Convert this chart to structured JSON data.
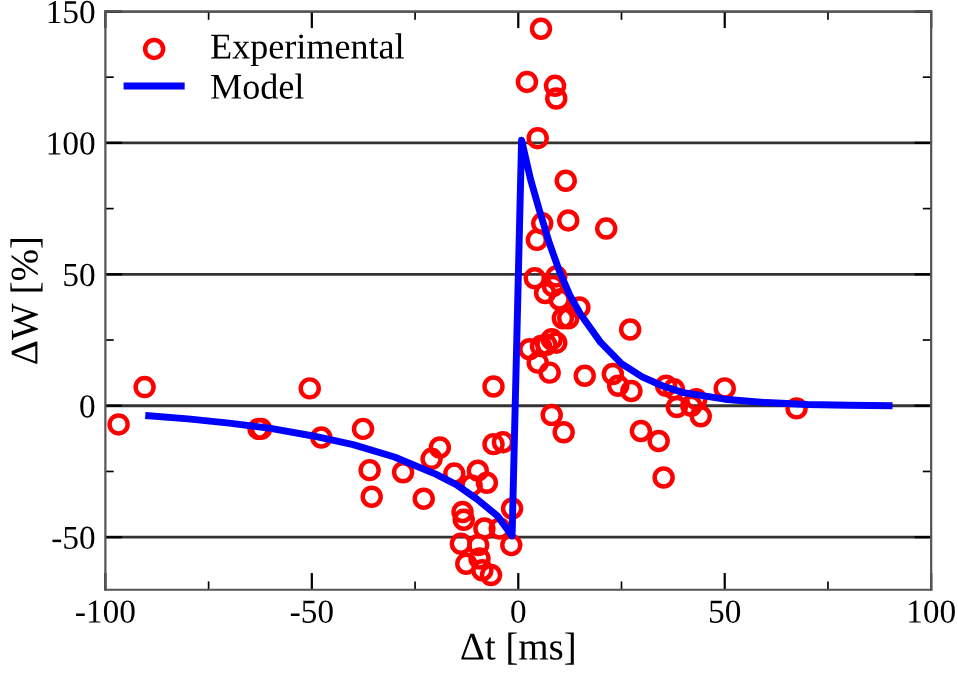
{
  "chart_data": {
    "type": "scatter",
    "xlabel": "Δt [ms]",
    "ylabel": "ΔW [%]",
    "xlim": [
      -100,
      100
    ],
    "xticks": [
      -100,
      -50,
      0,
      50,
      100
    ],
    "ylim": [
      -70,
      150
    ],
    "yticks": [
      -50,
      0,
      50,
      100,
      150
    ],
    "grid": "y",
    "legend": "top left",
    "series": [
      {
        "name": "Experimental",
        "marker": "circle",
        "color": "#ff0000",
        "x": [
          -96.8,
          -90.5,
          -62.9,
          -62.3,
          -50.5,
          -47.7,
          -37.6,
          -36.0,
          -35.5,
          -27.9,
          -22.9,
          -21.0,
          -19.0,
          -15.5,
          -13.5,
          -13.2,
          -13.9,
          -12.6,
          -11.3,
          -9.8,
          -9.7,
          -9.4,
          -8.7,
          -8.2,
          -7.6,
          -6.6,
          -6.0,
          -6.0,
          -3.7,
          -1.5,
          -4.5,
          -1.7,
          5.5,
          2.1,
          8.9,
          9.2,
          4.7,
          11.5,
          12.1,
          5.8,
          4.5,
          21.3,
          4.0,
          6.5,
          9.2,
          8.4,
          10.0,
          10.8,
          12.1,
          14.8,
          27.1,
          2.7,
          4.7,
          5.5,
          6.8,
          8.1,
          9.2,
          7.6,
          16.1,
          22.9,
          24.2,
          27.4,
          35.8,
          37.7,
          38.4,
          41.9,
          43.1,
          44.2,
          50.0,
          67.4,
          8.1,
          11.0,
          29.7,
          34.0,
          35.2
        ],
        "values": [
          -7.1,
          7.1,
          -8.8,
          -8.8,
          6.6,
          -12.1,
          -8.8,
          -24.5,
          -34.6,
          -25.3,
          -35.4,
          -20.2,
          -15.9,
          -25.8,
          -40.4,
          -43.4,
          -52.5,
          -60.1,
          -30.3,
          -24.7,
          -53.0,
          -58.1,
          -62.6,
          -46.7,
          -29.3,
          -64.4,
          7.3,
          -14.6,
          -13.9,
          -39.1,
          -46.7,
          -53.0,
          143.4,
          123.2,
          121.7,
          116.9,
          101.8,
          85.6,
          70.5,
          69.4,
          63.1,
          67.4,
          48.5,
          42.9,
          49.2,
          45.5,
          40.4,
          33.3,
          33.3,
          37.4,
          29.0,
          21.5,
          16.4,
          22.7,
          23.2,
          25.3,
          24.0,
          12.6,
          11.4,
          12.1,
          7.6,
          5.6,
          7.6,
          6.3,
          -0.5,
          0,
          2.5,
          -4.0,
          6.6,
          -1.0,
          -3.5,
          -10.1,
          -9.6,
          -13.4,
          -27.3
        ]
      },
      {
        "name": "Model",
        "type": "line",
        "marker": "none",
        "line_style": "solid",
        "color": "#0000ff",
        "x": [
          -89.5,
          -80,
          -70,
          -60,
          -50,
          -40,
          -30,
          -20,
          -15,
          -10,
          -5,
          -1.5,
          0.8,
          3,
          5,
          7.5,
          10,
          12.5,
          15,
          20,
          25,
          30,
          35,
          40,
          50,
          60,
          70,
          80,
          89.8
        ],
        "values": [
          -3.8,
          -5,
          -6.6,
          -8.6,
          -11.4,
          -14.8,
          -19.5,
          -26,
          -30,
          -35.5,
          -42,
          -49.5,
          101,
          86,
          75,
          62,
          51,
          42,
          35,
          24,
          16,
          11,
          7.5,
          5,
          2.5,
          1.2,
          0.5,
          0.2,
          0
        ]
      }
    ]
  }
}
